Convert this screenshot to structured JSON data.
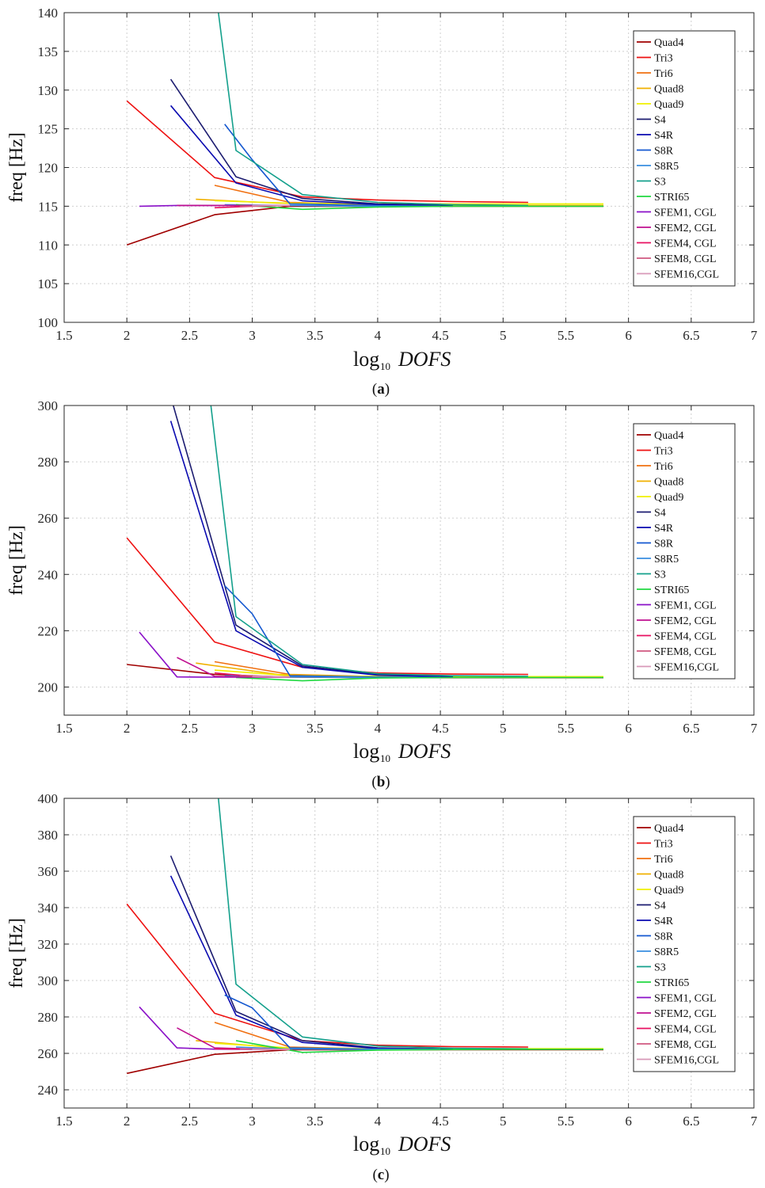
{
  "chart_data": [
    {
      "type": "line",
      "panel_label": "a",
      "ylabel": "freq [Hz]",
      "xlabel_main": "log",
      "xlabel_sub": "10",
      "xlabel_var": "DOFS",
      "xlim": [
        1.5,
        7
      ],
      "ylim": [
        100,
        140
      ],
      "xticks": [
        1.5,
        2,
        2.5,
        3,
        3.5,
        4,
        4.5,
        5,
        5.5,
        6,
        6.5,
        7
      ],
      "xtick_labels": [
        "1.5",
        "2",
        "2.5",
        "3",
        "3.5",
        "4",
        "4.5",
        "5",
        "5.5",
        "6",
        "6.5",
        "7"
      ],
      "yticks": [
        100,
        105,
        110,
        115,
        120,
        125,
        130,
        135,
        140
      ],
      "ytick_labels": [
        "100",
        "105",
        "110",
        "115",
        "120",
        "125",
        "130",
        "135",
        "140"
      ],
      "grid": true,
      "legend_position": "top-right",
      "series": [
        {
          "name": "Quad4",
          "color": "#a00000",
          "x": [
            2.0,
            2.7,
            3.3,
            3.9,
            4.5,
            5.2,
            5.8
          ],
          "y": [
            110.0,
            113.9,
            115.0,
            115.0,
            115.0,
            115.0,
            115.0
          ]
        },
        {
          "name": "Tri3",
          "color": "#ee1111",
          "x": [
            2.0,
            2.7,
            3.4,
            4.0,
            4.6,
            5.2
          ],
          "y": [
            128.6,
            118.7,
            116.2,
            115.8,
            115.6,
            115.5
          ]
        },
        {
          "name": "Tri6",
          "color": "#f07010",
          "x": [
            2.7,
            3.3,
            3.9,
            4.5,
            5.2
          ],
          "y": [
            117.7,
            115.5,
            115.2,
            115.1,
            115.1
          ]
        },
        {
          "name": "Quad8",
          "color": "#f0b000",
          "x": [
            2.55,
            3.2,
            3.8,
            4.4,
            5.2,
            5.8
          ],
          "y": [
            115.9,
            115.4,
            115.2,
            115.1,
            115.1,
            115.1
          ]
        },
        {
          "name": "Quad9",
          "color": "#f0f000",
          "x": [
            2.7,
            3.3,
            3.9,
            4.5,
            5.2,
            5.8
          ],
          "y": [
            115.7,
            115.4,
            115.3,
            115.3,
            115.3,
            115.3
          ]
        },
        {
          "name": "S4",
          "color": "#1c1c70",
          "x": [
            2.35,
            2.87,
            3.4,
            4.0,
            4.6
          ],
          "y": [
            131.4,
            118.8,
            116.0,
            115.3,
            115.1
          ]
        },
        {
          "name": "S4R",
          "color": "#0a0ab0",
          "x": [
            2.35,
            2.87,
            3.4,
            4.0,
            4.6
          ],
          "y": [
            128.0,
            118.0,
            115.7,
            115.2,
            115.0
          ]
        },
        {
          "name": "S8R",
          "color": "#1458d0",
          "x": [
            2.78,
            3.0,
            3.3,
            3.9,
            4.5
          ],
          "y": [
            125.6,
            121.0,
            115.3,
            115.1,
            115.0
          ]
        },
        {
          "name": "S8R5",
          "color": "#3a8ee0",
          "x": [
            2.78,
            3.3,
            3.9,
            4.5
          ],
          "y": [
            115.2,
            115.1,
            115.0,
            115.0
          ]
        },
        {
          "name": "S3",
          "color": "#14a08c",
          "x": [
            2.73,
            2.87,
            3.4,
            4.0,
            4.6,
            5.2
          ],
          "y": [
            140.0,
            122.2,
            116.5,
            115.5,
            115.2,
            115.1
          ]
        },
        {
          "name": "STRI65",
          "color": "#20d840",
          "x": [
            2.87,
            3.4,
            4.0,
            4.6,
            5.2,
            5.8
          ],
          "y": [
            115.2,
            114.6,
            114.9,
            115.0,
            115.0,
            115.0
          ]
        },
        {
          "name": "SFEM1, CGL",
          "color": "#8a10c8",
          "x": [
            2.1,
            2.4,
            2.7,
            3.0,
            3.3
          ],
          "y": [
            115.0,
            115.1,
            115.1,
            115.1,
            115.1
          ]
        },
        {
          "name": "SFEM2, CGL",
          "color": "#c01090",
          "x": [
            2.4,
            2.7,
            3.0,
            3.3
          ],
          "y": [
            115.1,
            115.1,
            115.1,
            115.1
          ]
        },
        {
          "name": "SFEM4, CGL",
          "color": "#e81060",
          "x": [
            2.7,
            3.0,
            3.3
          ],
          "y": [
            114.8,
            115.0,
            115.1
          ]
        },
        {
          "name": "SFEM8, CGL",
          "color": "#d05880",
          "x": [
            2.9,
            3.3
          ],
          "y": [
            115.0,
            115.1
          ]
        },
        {
          "name": "SFEM16,CGL",
          "color": "#d898b8",
          "x": [
            3.0,
            3.3
          ],
          "y": [
            115.1,
            115.1
          ]
        }
      ]
    },
    {
      "type": "line",
      "panel_label": "b",
      "ylabel": "freq [Hz]",
      "xlabel_main": "log",
      "xlabel_sub": "10",
      "xlabel_var": "DOFS",
      "xlim": [
        1.5,
        7
      ],
      "ylim": [
        190,
        300
      ],
      "xticks": [
        1.5,
        2,
        2.5,
        3,
        3.5,
        4,
        4.5,
        5,
        5.5,
        6,
        6.5,
        7
      ],
      "xtick_labels": [
        "1.5",
        "2",
        "2.5",
        "3",
        "3.5",
        "4",
        "4.5",
        "5",
        "5.5",
        "6",
        "6.5",
        "7"
      ],
      "yticks": [
        200,
        220,
        240,
        260,
        280,
        300
      ],
      "ytick_labels": [
        "200",
        "220",
        "240",
        "260",
        "280",
        "300"
      ],
      "grid": true,
      "legend_position": "top-right",
      "series": [
        {
          "name": "Quad4",
          "color": "#a00000",
          "x": [
            2.0,
            2.7,
            3.3,
            3.9,
            4.5,
            5.2,
            5.8
          ],
          "y": [
            208.0,
            204.5,
            203.5,
            203.4,
            203.3,
            203.3,
            203.3
          ]
        },
        {
          "name": "Tri3",
          "color": "#ee1111",
          "x": [
            2.0,
            2.7,
            3.4,
            4.0,
            4.6,
            5.2
          ],
          "y": [
            253.0,
            216.0,
            207.0,
            205.0,
            204.6,
            204.5
          ]
        },
        {
          "name": "Tri6",
          "color": "#f07010",
          "x": [
            2.7,
            3.3,
            3.9,
            4.5,
            5.2
          ],
          "y": [
            209.0,
            204.5,
            203.8,
            203.6,
            203.6
          ]
        },
        {
          "name": "Quad8",
          "color": "#f0b000",
          "x": [
            2.55,
            3.2,
            3.8,
            4.4,
            5.2,
            5.8
          ],
          "y": [
            208.5,
            204.5,
            203.8,
            203.6,
            203.5,
            203.5
          ]
        },
        {
          "name": "Quad9",
          "color": "#f0f000",
          "x": [
            2.7,
            3.3,
            3.9,
            4.5,
            5.2,
            5.8
          ],
          "y": [
            206.0,
            204.0,
            203.8,
            203.7,
            203.7,
            203.7
          ]
        },
        {
          "name": "S4",
          "color": "#1c1c70",
          "x": [
            2.37,
            2.87,
            3.4,
            4.0,
            4.6
          ],
          "y": [
            300.0,
            222.0,
            207.5,
            204.5,
            203.8
          ]
        },
        {
          "name": "S4R",
          "color": "#0a0ab0",
          "x": [
            2.35,
            2.87,
            3.4,
            4.0,
            4.6
          ],
          "y": [
            294.5,
            220.0,
            207.0,
            204.2,
            203.6
          ]
        },
        {
          "name": "S8R",
          "color": "#1458d0",
          "x": [
            2.78,
            3.0,
            3.3,
            3.9,
            4.5
          ],
          "y": [
            236.0,
            226.0,
            204.0,
            203.6,
            203.4
          ]
        },
        {
          "name": "S8R5",
          "color": "#3a8ee0",
          "x": [
            2.78,
            3.3,
            3.9,
            4.5
          ],
          "y": [
            204.0,
            203.6,
            203.4,
            203.4
          ]
        },
        {
          "name": "S3",
          "color": "#14a08c",
          "x": [
            2.67,
            2.87,
            3.4,
            4.0,
            4.6,
            5.2
          ],
          "y": [
            300.0,
            225.0,
            208.0,
            204.7,
            204.0,
            203.8
          ]
        },
        {
          "name": "STRI65",
          "color": "#20d840",
          "x": [
            2.87,
            3.4,
            4.0,
            4.6,
            5.2,
            5.8
          ],
          "y": [
            203.4,
            202.2,
            203.2,
            203.4,
            203.4,
            203.4
          ]
        },
        {
          "name": "SFEM1, CGL",
          "color": "#8a10c8",
          "x": [
            2.1,
            2.4,
            2.7,
            3.0,
            3.3
          ],
          "y": [
            219.5,
            203.6,
            203.5,
            203.5,
            203.5
          ]
        },
        {
          "name": "SFEM2, CGL",
          "color": "#c01090",
          "x": [
            2.4,
            2.7,
            3.0,
            3.3
          ],
          "y": [
            210.5,
            203.8,
            203.6,
            203.5
          ]
        },
        {
          "name": "SFEM4, CGL",
          "color": "#e81060",
          "x": [
            2.7,
            3.0,
            3.3
          ],
          "y": [
            205.0,
            203.8,
            203.6
          ]
        },
        {
          "name": "SFEM8, CGL",
          "color": "#d05880",
          "x": [
            2.9,
            3.3
          ],
          "y": [
            204.0,
            203.6
          ]
        },
        {
          "name": "SFEM16,CGL",
          "color": "#d898b8",
          "x": [
            3.0,
            3.3
          ],
          "y": [
            203.8,
            203.6
          ]
        }
      ]
    },
    {
      "type": "line",
      "panel_label": "c",
      "ylabel": "freq [Hz]",
      "xlabel_main": "log",
      "xlabel_sub": "10",
      "xlabel_var": "DOFS",
      "xlim": [
        1.5,
        7
      ],
      "ylim": [
        230,
        400
      ],
      "xticks": [
        1.5,
        2,
        2.5,
        3,
        3.5,
        4,
        4.5,
        5,
        5.5,
        6,
        6.5,
        7
      ],
      "xtick_labels": [
        "1.5",
        "2",
        "2.5",
        "3",
        "3.5",
        "4",
        "4.5",
        "5",
        "5.5",
        "6",
        "6.5",
        "7"
      ],
      "yticks": [
        240,
        260,
        280,
        300,
        320,
        340,
        360,
        380,
        400
      ],
      "ytick_labels": [
        "240",
        "260",
        "280",
        "300",
        "320",
        "340",
        "360",
        "380",
        "400"
      ],
      "grid": true,
      "legend_position": "top-right",
      "series": [
        {
          "name": "Quad4",
          "color": "#a00000",
          "x": [
            2.0,
            2.7,
            3.3,
            3.9,
            4.5,
            5.2,
            5.8
          ],
          "y": [
            249.0,
            259.5,
            262.0,
            262.0,
            262.0,
            262.0,
            262.0
          ]
        },
        {
          "name": "Tri3",
          "color": "#ee1111",
          "x": [
            2.0,
            2.7,
            3.4,
            4.0,
            4.6,
            5.2
          ],
          "y": [
            342.0,
            282.0,
            267.0,
            264.5,
            263.7,
            263.5
          ]
        },
        {
          "name": "Tri6",
          "color": "#f07010",
          "x": [
            2.7,
            3.3,
            3.9,
            4.5,
            5.2
          ],
          "y": [
            277.0,
            263.5,
            262.5,
            262.3,
            262.3
          ]
        },
        {
          "name": "Quad8",
          "color": "#f0b000",
          "x": [
            2.55,
            3.2,
            3.8,
            4.4,
            5.2,
            5.8
          ],
          "y": [
            267.0,
            263.0,
            262.4,
            262.3,
            262.3,
            262.3
          ]
        },
        {
          "name": "Quad9",
          "color": "#f0f000",
          "x": [
            2.7,
            3.3,
            3.9,
            4.5,
            5.2,
            5.8
          ],
          "y": [
            265.5,
            263.0,
            262.7,
            262.6,
            262.6,
            262.6
          ]
        },
        {
          "name": "S4",
          "color": "#1c1c70",
          "x": [
            2.35,
            2.87,
            3.4,
            4.0,
            4.6
          ],
          "y": [
            368.5,
            283.0,
            267.0,
            263.0,
            262.3
          ]
        },
        {
          "name": "S4R",
          "color": "#0a0ab0",
          "x": [
            2.35,
            2.87,
            3.4,
            4.0,
            4.6
          ],
          "y": [
            357.5,
            281.0,
            266.0,
            262.7,
            262.1
          ]
        },
        {
          "name": "S8R",
          "color": "#1458d0",
          "x": [
            2.78,
            3.0,
            3.3,
            3.9,
            4.5
          ],
          "y": [
            292.0,
            285.0,
            263.0,
            262.4,
            262.2
          ]
        },
        {
          "name": "S8R5",
          "color": "#3a8ee0",
          "x": [
            2.87,
            3.3,
            3.9,
            4.5
          ],
          "y": [
            263.5,
            262.4,
            262.2,
            262.2
          ]
        },
        {
          "name": "S3",
          "color": "#14a08c",
          "x": [
            2.73,
            2.87,
            3.4,
            4.0,
            4.6,
            5.2
          ],
          "y": [
            400.0,
            298.0,
            269.0,
            264.0,
            262.8,
            262.5
          ]
        },
        {
          "name": "STRI65",
          "color": "#20d840",
          "x": [
            2.87,
            3.4,
            4.0,
            4.6,
            5.2,
            5.8
          ],
          "y": [
            267.0,
            260.5,
            261.8,
            262.1,
            262.2,
            262.2
          ]
        },
        {
          "name": "SFEM1, CGL",
          "color": "#8a10c8",
          "x": [
            2.1,
            2.4,
            2.7,
            3.0,
            3.3
          ],
          "y": [
            285.5,
            263.0,
            262.3,
            262.2,
            262.2
          ]
        },
        {
          "name": "SFEM2, CGL",
          "color": "#c01090",
          "x": [
            2.4,
            2.7,
            3.0,
            3.3
          ],
          "y": [
            274.0,
            263.0,
            262.4,
            262.2
          ]
        },
        {
          "name": "SFEM4, CGL",
          "color": "#e81060",
          "x": [
            2.7,
            3.0,
            3.3
          ],
          "y": [
            262.5,
            262.3,
            262.2
          ]
        },
        {
          "name": "SFEM8, CGL",
          "color": "#d05880",
          "x": [
            2.9,
            3.3
          ],
          "y": [
            262.4,
            262.2
          ]
        },
        {
          "name": "SFEM16,CGL",
          "color": "#d898b8",
          "x": [
            3.0,
            3.3
          ],
          "y": [
            262.3,
            262.2
          ]
        }
      ]
    }
  ]
}
